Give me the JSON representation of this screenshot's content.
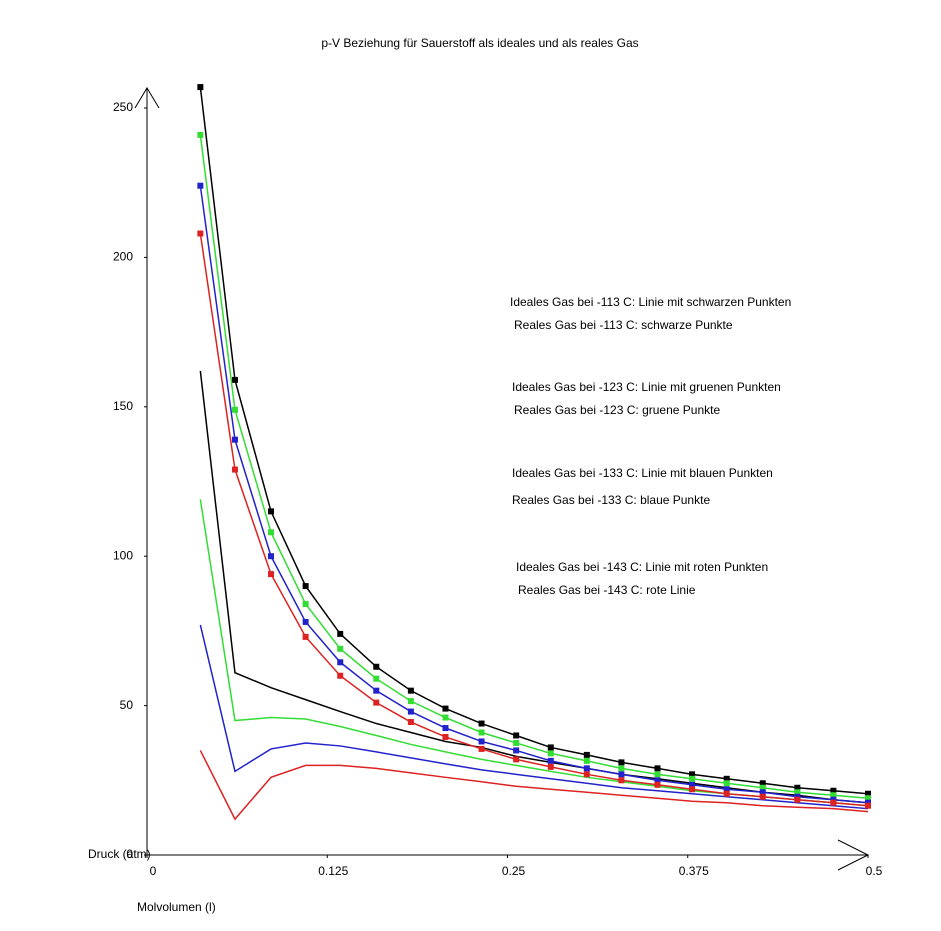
{
  "chart_data": {
    "type": "line",
    "title": "p-V Beziehung für Sauerstoff als ideales und als reales Gas",
    "x_label": "Molvolumen (l)",
    "y_label": "Druck (atm)",
    "xlim": [
      0,
      0.5
    ],
    "ylim": [
      0,
      260
    ],
    "xticks": [
      0,
      0.125,
      0.25,
      0.375,
      0.5
    ],
    "yticks": [
      0,
      50,
      100,
      150,
      200,
      250
    ],
    "x": [
      0.037,
      0.061,
      0.086,
      0.11,
      0.134,
      0.159,
      0.183,
      0.207,
      0.232,
      0.256,
      0.28,
      0.305,
      0.329,
      0.354,
      0.378,
      0.402,
      0.427,
      0.451,
      0.476,
      0.5
    ],
    "series": [
      {
        "name": "Ideales Gas bei -113 C: Linie mit schwarzen Punkten",
        "color": "#000000",
        "markers": true,
        "values": [
          257,
          159,
          115,
          90,
          74,
          63,
          55,
          49,
          44,
          40,
          36,
          33.5,
          31,
          29,
          27,
          25.5,
          24,
          22.5,
          21.5,
          20.5
        ]
      },
      {
        "name": "Reales Gas bei -113 C:  schwarze Punkte",
        "color": "#000000",
        "markers": false,
        "values": [
          162,
          61,
          56,
          52,
          48,
          44,
          41,
          38,
          36,
          33,
          31,
          29,
          27,
          25.5,
          24,
          22.5,
          21,
          20,
          18.5,
          17.5
        ]
      },
      {
        "name": "Ideales Gas bei -123 C: Linie mit gruenen Punkten",
        "color": "#33dd33",
        "markers": true,
        "values": [
          241,
          149,
          108,
          84,
          69,
          59,
          51.5,
          46,
          41,
          37.5,
          34,
          31.5,
          29,
          27,
          25.5,
          24,
          22.5,
          21,
          20,
          19
        ]
      },
      {
        "name": "Reales Gas bei -123 C:  gruene Punkte",
        "color": "#33dd33",
        "markers": false,
        "values": [
          119,
          45,
          46,
          45.5,
          43,
          40,
          37,
          34.5,
          32,
          30,
          28,
          26,
          24.5,
          23,
          21.5,
          20.5,
          19.5,
          18.5,
          17.5,
          16.5
        ]
      },
      {
        "name": "Ideales Gas bei -133 C: Linie mit blauen Punkten",
        "color": "#2222cc",
        "markers": true,
        "values": [
          224,
          139,
          100,
          78,
          64.5,
          55,
          48,
          42.5,
          38,
          35,
          31.5,
          29,
          27,
          25,
          23.5,
          22,
          21,
          19.5,
          18.5,
          17.5
        ]
      },
      {
        "name": "Reales Gas bei -133 C:  blaue Punkte",
        "color": "#2222cc",
        "markers": false,
        "values": [
          77,
          28,
          35.5,
          37.5,
          36.5,
          34.5,
          32.5,
          30.5,
          28.5,
          27,
          25.5,
          24,
          22.5,
          21.5,
          20.5,
          19.5,
          18.5,
          17.5,
          16.5,
          15.5
        ]
      },
      {
        "name": "Ideales Gas bei -143 C: Linie mit roten Punkten",
        "color": "#dd2222",
        "markers": true,
        "values": [
          208,
          129,
          94,
          73,
          60,
          51,
          44.5,
          39.5,
          35.5,
          32,
          29.5,
          27,
          25,
          23.5,
          22,
          20.5,
          19.5,
          18.5,
          17.5,
          16.5
        ]
      },
      {
        "name": "Reales Gas bei -143 C:  rote Linie",
        "color": "#dd2222",
        "markers": false,
        "values": [
          35,
          12,
          26,
          30,
          30,
          29,
          27.5,
          26,
          24.5,
          23,
          22,
          21,
          20,
          19,
          18,
          17.5,
          16.5,
          16,
          15.5,
          14.5
        ]
      }
    ]
  }
}
